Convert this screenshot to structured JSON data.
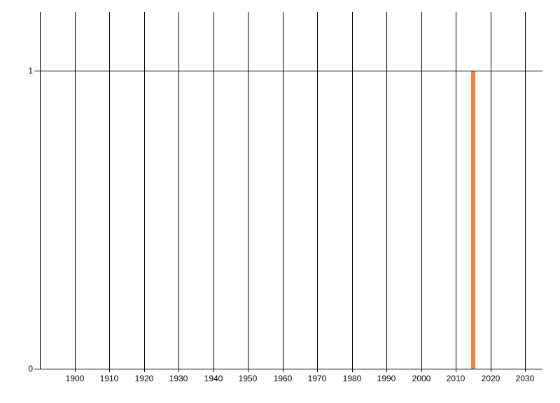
{
  "chart_data": {
    "type": "bar",
    "title": "",
    "xlabel": "",
    "ylabel": "",
    "x": [
      2015
    ],
    "values": [
      1
    ],
    "bar_color": "#F6813C",
    "bar_width_years": 1.2,
    "x_gridline_years": [
      1890,
      1900,
      1910,
      1920,
      1930,
      1940,
      1950,
      1960,
      1970,
      1980,
      1990,
      2000,
      2010,
      2020,
      2030
    ],
    "x_tick_labels": [
      "1900",
      "1910",
      "1920",
      "1930",
      "1940",
      "1950",
      "1960",
      "1970",
      "1980",
      "1990",
      "2000",
      "2010",
      "2020",
      "2030"
    ],
    "y_ticks": [
      0,
      1
    ],
    "y_tick_labels": [
      "0",
      "1"
    ],
    "xlim": [
      1890,
      2035
    ],
    "ylim": [
      0,
      1.2
    ],
    "grid": "vertical-only",
    "gridline_color": "#000000",
    "axis_color": "#000000",
    "text_color": "#000000",
    "background": "#ffffff",
    "legend": "none"
  }
}
